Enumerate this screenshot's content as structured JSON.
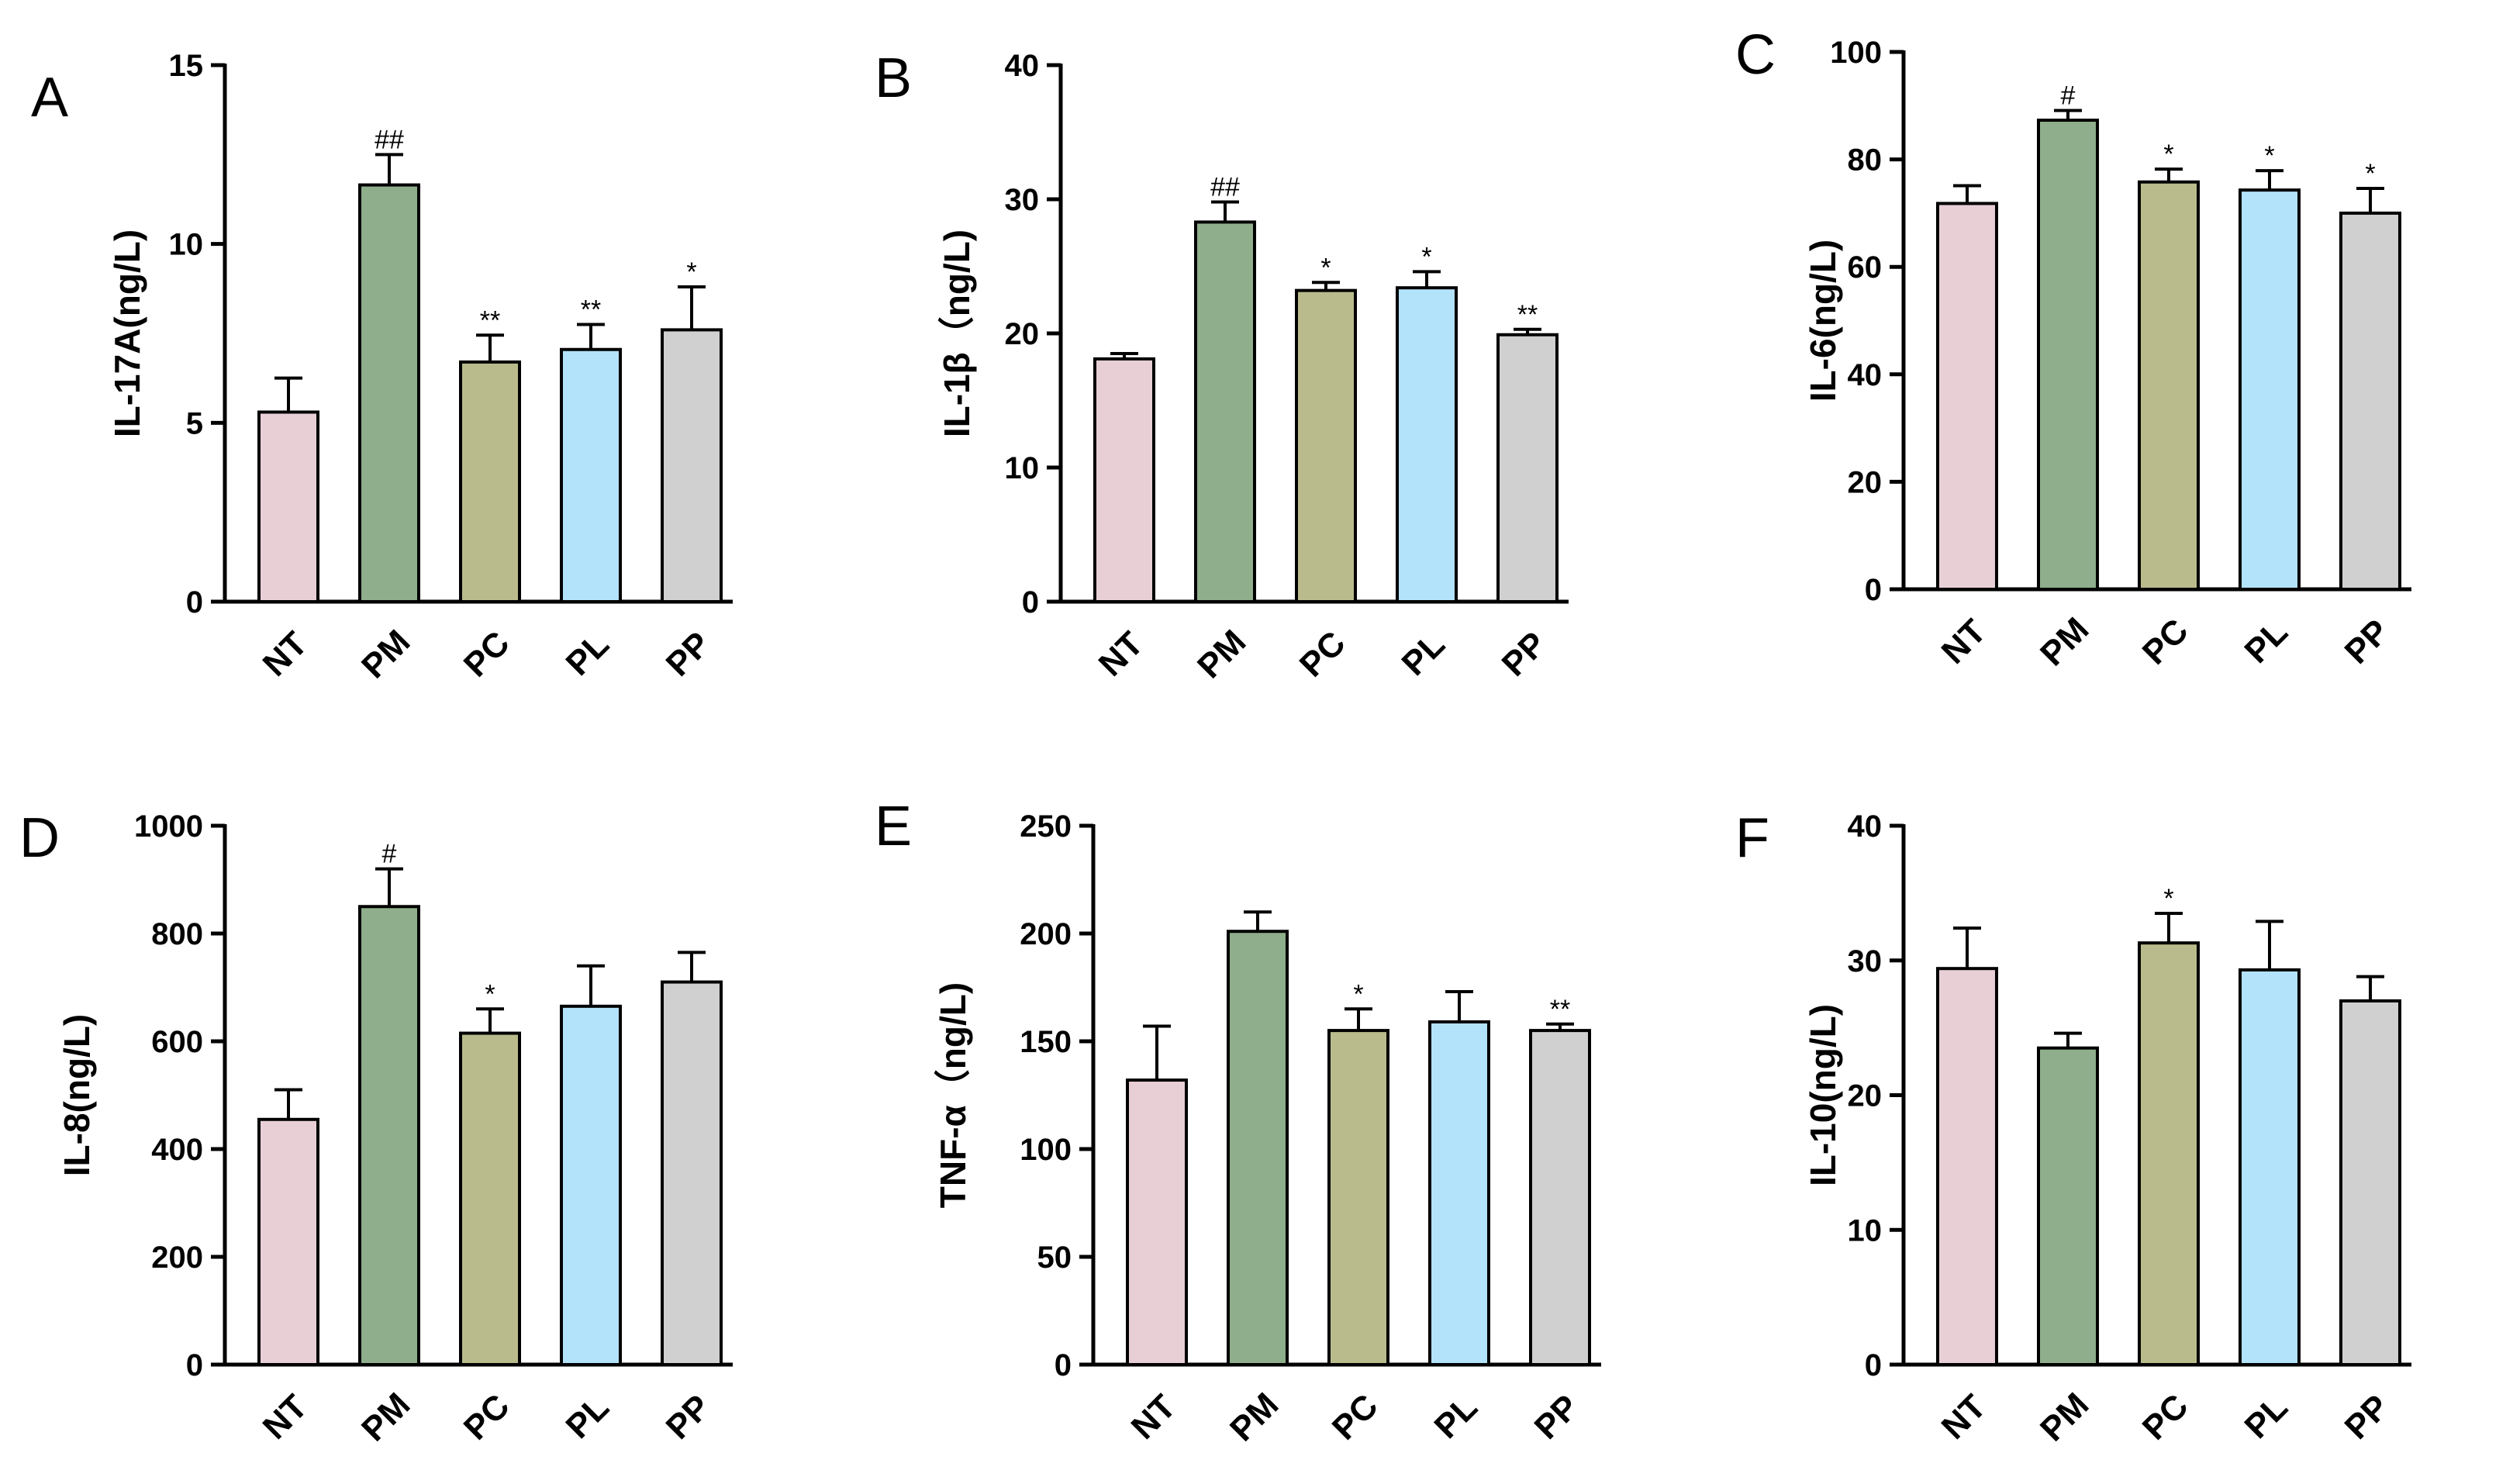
{
  "figure": {
    "colors": {
      "NT": "#e8cfd6",
      "PM": "#8fae8c",
      "PC": "#b9bb8c",
      "PL": "#b3e2fb",
      "PP": "#d0d0d0",
      "axis": "#000000"
    }
  },
  "chart_data": [
    {
      "panel": "A",
      "type": "bar",
      "title": "",
      "xlabel": "",
      "ylabel": "IL-17A(ng/L)",
      "categories": [
        "NT",
        "PM",
        "PC",
        "PL",
        "PP"
      ],
      "values": [
        5.3,
        11.65,
        6.7,
        7.05,
        7.6
      ],
      "errors": [
        0.95,
        0.85,
        0.75,
        0.7,
        1.2
      ],
      "significance": [
        "",
        "##",
        "**",
        "**",
        "*"
      ],
      "ylim": [
        0,
        15
      ],
      "yticks": [
        0,
        5,
        10,
        15
      ],
      "grid": false
    },
    {
      "panel": "B",
      "type": "bar",
      "title": "",
      "xlabel": "",
      "ylabel": "IL-1β（ng/L)",
      "categories": [
        "NT",
        "PM",
        "PC",
        "PL",
        "PP"
      ],
      "values": [
        18.1,
        28.3,
        23.2,
        23.4,
        19.9
      ],
      "errors": [
        0.4,
        1.5,
        0.6,
        1.2,
        0.4
      ],
      "significance": [
        "",
        "##",
        "*",
        "*",
        "**"
      ],
      "ylim": [
        0,
        40
      ],
      "yticks": [
        0,
        10,
        20,
        30,
        40
      ],
      "grid": false
    },
    {
      "panel": "C",
      "type": "bar",
      "title": "",
      "xlabel": "",
      "ylabel": "IL-6(ng/L)",
      "categories": [
        "NT",
        "PM",
        "PC",
        "PL",
        "PP"
      ],
      "values": [
        71.8,
        87.3,
        75.8,
        74.3,
        70
      ],
      "errors": [
        3.3,
        1.8,
        2.4,
        3.6,
        4.6
      ],
      "significance": [
        "",
        "#",
        "*",
        "*",
        "*"
      ],
      "ylim": [
        0,
        100
      ],
      "yticks": [
        0,
        20,
        40,
        60,
        80,
        100
      ],
      "grid": false
    },
    {
      "panel": "D",
      "type": "bar",
      "title": "",
      "xlabel": "",
      "ylabel": "IL-8(ng/L)",
      "categories": [
        "NT",
        "PM",
        "PC",
        "PL",
        "PP"
      ],
      "values": [
        455,
        850,
        615,
        665,
        710
      ],
      "errors": [
        55,
        70,
        45,
        75,
        55
      ],
      "significance": [
        "",
        "#",
        "*",
        "",
        ""
      ],
      "ylim": [
        0,
        1000
      ],
      "yticks": [
        0,
        200,
        400,
        600,
        800,
        1000
      ],
      "grid": false
    },
    {
      "panel": "E",
      "type": "bar",
      "title": "",
      "xlabel": "",
      "ylabel": "TNF-α（ng/L)",
      "categories": [
        "NT",
        "PM",
        "PC",
        "PL",
        "PP"
      ],
      "values": [
        132,
        201,
        155,
        159,
        155
      ],
      "errors": [
        25,
        9,
        10,
        14,
        3
      ],
      "significance": [
        "",
        "",
        "*",
        "",
        "**"
      ],
      "ylim": [
        0,
        250
      ],
      "yticks": [
        0,
        50,
        100,
        150,
        200,
        250
      ],
      "grid": false
    },
    {
      "panel": "F",
      "type": "bar",
      "title": "",
      "xlabel": "",
      "ylabel": "IL-10(ng/L)",
      "categories": [
        "NT",
        "PM",
        "PC",
        "PL",
        "PP"
      ],
      "values": [
        29.4,
        23.5,
        31.3,
        29.3,
        27
      ],
      "errors": [
        3,
        1.1,
        2.2,
        3.6,
        1.8
      ],
      "significance": [
        "",
        "",
        "*",
        "",
        ""
      ],
      "ylim": [
        0,
        40
      ],
      "yticks": [
        0,
        10,
        20,
        30,
        40
      ],
      "grid": false
    }
  ]
}
